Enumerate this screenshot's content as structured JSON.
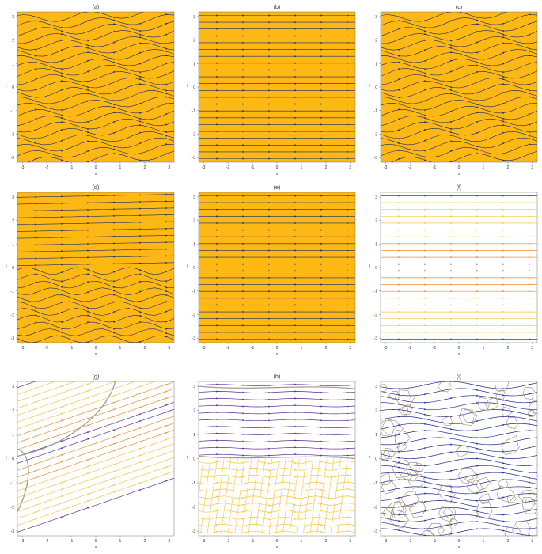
{
  "colors": {
    "panel_fill": "#FDB813",
    "dark_stream": "#1a2a6c",
    "navy": "#1f2c8f",
    "purple": "#5a2a9a",
    "orange": "#f08a2a",
    "yellow": "#f5c542",
    "gray": "#9a9a9a",
    "brown": "#a08070"
  },
  "chart_data": [
    {
      "type": "streamplot",
      "title": "(a)",
      "xlabel": "x",
      "ylabel": "t",
      "xlim": [
        -3.2,
        3.2
      ],
      "ylim": [
        -3.2,
        3.2
      ],
      "xticks": [
        "-3",
        "-2",
        "-1",
        "0",
        "1",
        "2",
        "3"
      ],
      "yticks": [
        "-3",
        "-2",
        "-1",
        "0",
        "1",
        "2",
        "3"
      ],
      "background": "filled",
      "style": "wavy",
      "palette": "dark"
    },
    {
      "type": "streamplot",
      "title": "(b)",
      "xlabel": "x",
      "ylabel": "t",
      "xlim": [
        -3.2,
        3.2
      ],
      "ylim": [
        -3.2,
        3.2
      ],
      "xticks": [
        "-3",
        "-2",
        "-1",
        "0",
        "1",
        "2",
        "3"
      ],
      "yticks": [
        "-3",
        "-2",
        "-1",
        "0",
        "1",
        "2",
        "3"
      ],
      "background": "filled",
      "style": "straight",
      "palette": "dark"
    },
    {
      "type": "streamplot",
      "title": "(c)",
      "xlabel": "x",
      "ylabel": "t",
      "xlim": [
        -3.2,
        3.2
      ],
      "ylim": [
        -3.2,
        3.2
      ],
      "xticks": [
        "-3",
        "-2",
        "-1",
        "0",
        "1",
        "2",
        "3"
      ],
      "yticks": [
        "-3",
        "-2",
        "-1",
        "0",
        "1",
        "2",
        "3"
      ],
      "background": "filled",
      "style": "wavy",
      "palette": "dark"
    },
    {
      "type": "streamplot",
      "title": "(d)",
      "xlabel": "x",
      "ylabel": "t",
      "xlim": [
        -3.2,
        3.2
      ],
      "ylim": [
        -3.2,
        3.2
      ],
      "xticks": [
        "-3",
        "-2",
        "-1",
        "0",
        "1",
        "2",
        "3"
      ],
      "yticks": [
        "-3",
        "-2",
        "-1",
        "0",
        "1",
        "2",
        "3"
      ],
      "background": "filled",
      "style": "mixed",
      "palette": "dark"
    },
    {
      "type": "streamplot",
      "title": "(e)",
      "xlabel": "x",
      "ylabel": "t",
      "xlim": [
        -3.2,
        3.2
      ],
      "ylim": [
        -3.2,
        3.2
      ],
      "xticks": [
        "-3",
        "-2",
        "-1",
        "0",
        "1",
        "2",
        "3"
      ],
      "yticks": [
        "-3",
        "-2",
        "-1",
        "0",
        "1",
        "2",
        "3"
      ],
      "background": "filled",
      "style": "straight",
      "palette": "dark"
    },
    {
      "type": "streamplot",
      "title": "(f)",
      "xlabel": "x",
      "ylabel": "t",
      "xlim": [
        -3.2,
        3.2
      ],
      "ylim": [
        -3.2,
        3.2
      ],
      "xticks": [
        "-3",
        "-2",
        "-1",
        "0",
        "1",
        "2",
        "3"
      ],
      "yticks": [
        "-3",
        "-2",
        "-1",
        "0",
        "1",
        "2",
        "3"
      ],
      "background": "none",
      "style": "straight",
      "palette": "warm"
    },
    {
      "type": "streamplot",
      "title": "(g)",
      "xlabel": "x",
      "ylabel": "t",
      "xlim": [
        -3.2,
        3.2
      ],
      "ylim": [
        -3.2,
        3.2
      ],
      "xticks": [
        "-3",
        "-2",
        "-1",
        "0",
        "1",
        "2",
        "3"
      ],
      "yticks": [
        "-3",
        "-2",
        "-1",
        "0",
        "1",
        "2",
        "3"
      ],
      "background": "none",
      "style": "diagonal",
      "palette": "warm",
      "contours": true
    },
    {
      "type": "streamplot",
      "title": "(h)",
      "xlabel": "x",
      "ylabel": "t",
      "xlim": [
        -3.2,
        3.2
      ],
      "ylim": [
        -3.2,
        3.2
      ],
      "xticks": [
        "-3",
        "-2",
        "-1",
        "0",
        "1",
        "2",
        "3"
      ],
      "yticks": [
        "-3",
        "-2",
        "-1",
        "0",
        "1",
        "2",
        "3"
      ],
      "background": "none",
      "style": "split",
      "palette": "split",
      "contours": true
    },
    {
      "type": "streamplot",
      "title": "(i)",
      "xlabel": "x",
      "ylabel": "t",
      "xlim": [
        -3.2,
        3.2
      ],
      "ylim": [
        -3.2,
        3.2
      ],
      "xticks": [
        "-3",
        "-2",
        "-1",
        "0",
        "1",
        "2",
        "3"
      ],
      "yticks": [
        "-3",
        "-2",
        "-1",
        "0",
        "1",
        "2",
        "3"
      ],
      "background": "none",
      "style": "cells",
      "palette": "navy",
      "contours": true
    }
  ]
}
